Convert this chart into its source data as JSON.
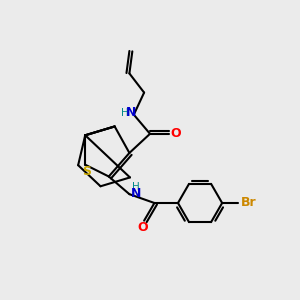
{
  "background_color": "#ebebeb",
  "bond_color": "#000000",
  "S_color": "#ccaa00",
  "N_color": "#0000cc",
  "O_color": "#ff0000",
  "Br_color": "#cc8800",
  "H_color": "#008888",
  "figsize": [
    3.0,
    3.0
  ],
  "dpi": 100,
  "xlim": [
    0,
    10
  ],
  "ylim": [
    0,
    10
  ]
}
